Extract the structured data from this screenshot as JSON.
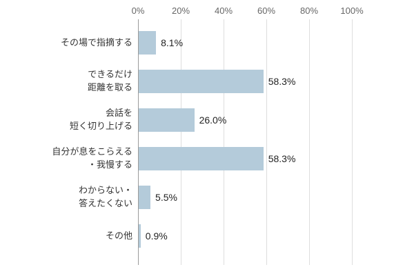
{
  "chart_data": {
    "type": "bar",
    "orientation": "horizontal",
    "title": "",
    "x_axis": {
      "position": "top",
      "min": 0,
      "max": 100,
      "ticks": [
        "0%",
        "20%",
        "40%",
        "60%",
        "80%",
        "100%"
      ]
    },
    "categories": [
      "その場で指摘する",
      "できるだけ\n距離を取る",
      "会話を\n短く切り上げる",
      "自分が息をこらえる\n・我慢する",
      "わからない・\n答えたくない",
      "その他"
    ],
    "values": [
      8.1,
      58.3,
      26.0,
      58.3,
      5.5,
      0.9
    ],
    "value_labels": [
      "8.1%",
      "58.3%",
      "26.0%",
      "58.3%",
      "5.5%",
      "0.9%"
    ],
    "grid": true,
    "legend": false,
    "colors": {
      "bar": "#b4cbda",
      "grid": "#dddddd",
      "axis": "#999999",
      "category_text": "#333333",
      "value_text": "#222222",
      "tick_text": "#666666",
      "background": "#ffffff"
    }
  }
}
